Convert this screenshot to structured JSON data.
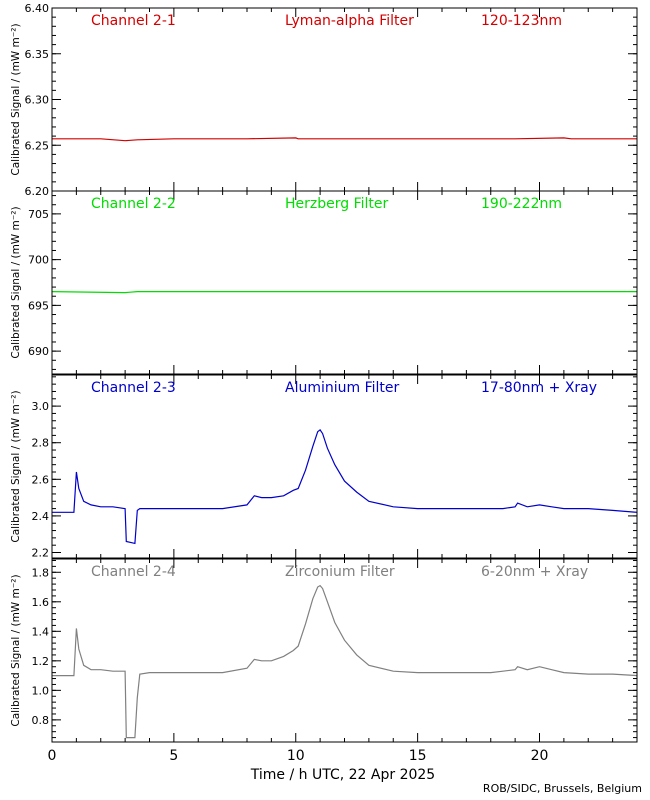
{
  "colors": {
    "channel_1": "#d40000",
    "channel_2": "#00dd00",
    "channel_3": "#0000cc",
    "channel_4": "#808080",
    "axes": "#000000"
  },
  "xlabel": "Time / h UTC, 22 Apr 2025",
  "credit": "ROB/SIDC, Brussels, Belgium",
  "chart_data": [
    {
      "type": "line",
      "channel": "Channel 2-1",
      "filter": "Lyman-alpha Filter",
      "band": "120-123nm",
      "ylabel": "Calibrated Signal / (mW m⁻²)",
      "xlim": [
        0,
        24
      ],
      "ylim": [
        6.2,
        6.4
      ],
      "yticks": [
        6.2,
        6.25,
        6.3,
        6.35,
        6.4
      ],
      "ytick_labels": [
        "6.20",
        "6.25",
        "6.30",
        "6.35",
        "6.40"
      ],
      "xticks": [
        0,
        5,
        10,
        15,
        20
      ],
      "xtick_labels": [
        "0",
        "5",
        "10",
        "15",
        "20"
      ],
      "x": [
        0,
        2,
        3,
        3.5,
        5,
        8,
        10,
        10.1,
        12,
        15,
        19,
        21,
        21.3,
        22,
        24
      ],
      "y": [
        6.257,
        6.257,
        6.255,
        6.256,
        6.257,
        6.257,
        6.258,
        6.257,
        6.257,
        6.257,
        6.257,
        6.258,
        6.257,
        6.257,
        6.257
      ]
    },
    {
      "type": "line",
      "channel": "Channel 2-2",
      "filter": "Herzberg Filter",
      "band": "190-222nm",
      "ylabel": "Calibrated Signal / (mW m⁻²)",
      "xlim": [
        0,
        24
      ],
      "ylim": [
        687.5,
        707.5
      ],
      "yticks": [
        690,
        695,
        700,
        705
      ],
      "ytick_labels": [
        "690",
        "695",
        "700",
        "705"
      ],
      "xticks": [
        0,
        5,
        10,
        15,
        20
      ],
      "xtick_labels": [
        "0",
        "5",
        "10",
        "15",
        "20"
      ],
      "x": [
        0,
        3,
        3.5,
        8,
        12,
        16,
        20,
        24
      ],
      "y": [
        696.5,
        696.4,
        696.5,
        696.5,
        696.5,
        696.5,
        696.5,
        696.5
      ]
    },
    {
      "type": "line",
      "channel": "Channel 2-3",
      "filter": "Aluminium Filter",
      "band": "17-80nm + Xray",
      "ylabel": "Calibrated Signal / (mW m⁻²)",
      "xlim": [
        0,
        24
      ],
      "ylim": [
        2.17,
        3.17
      ],
      "yticks": [
        2.2,
        2.4,
        2.6,
        2.8,
        3.0
      ],
      "ytick_labels": [
        "2.2",
        "2.4",
        "2.6",
        "2.8",
        "3.0"
      ],
      "xticks": [
        0,
        5,
        10,
        15,
        20
      ],
      "xtick_labels": [
        "0",
        "5",
        "10",
        "15",
        "20"
      ],
      "x": [
        0,
        0.9,
        1.0,
        1.1,
        1.3,
        1.6,
        2.0,
        2.5,
        3.0,
        3.05,
        3.4,
        3.5,
        3.6,
        4.0,
        5.0,
        6.0,
        7.0,
        8.0,
        8.3,
        8.6,
        9.0,
        9.5,
        9.9,
        10.1,
        10.4,
        10.7,
        10.9,
        11.0,
        11.1,
        11.3,
        11.6,
        12.0,
        12.5,
        13.0,
        14.0,
        15.0,
        16.0,
        17.0,
        18.0,
        18.5,
        19.0,
        19.1,
        19.5,
        20.0,
        20.5,
        21.0,
        22.0,
        23.0,
        24.0
      ],
      "y": [
        2.42,
        2.42,
        2.64,
        2.55,
        2.48,
        2.46,
        2.45,
        2.45,
        2.44,
        2.26,
        2.25,
        2.43,
        2.44,
        2.44,
        2.44,
        2.44,
        2.44,
        2.46,
        2.51,
        2.5,
        2.5,
        2.51,
        2.54,
        2.55,
        2.65,
        2.78,
        2.86,
        2.87,
        2.85,
        2.77,
        2.68,
        2.59,
        2.53,
        2.48,
        2.45,
        2.44,
        2.44,
        2.44,
        2.44,
        2.44,
        2.45,
        2.47,
        2.45,
        2.46,
        2.45,
        2.44,
        2.44,
        2.43,
        2.42
      ]
    },
    {
      "type": "line",
      "channel": "Channel 2-4",
      "filter": "Zirconium Filter",
      "band": "6-20nm + Xray",
      "ylabel": "Calibrated Signal / (mW m⁻²)",
      "xlim": [
        0,
        24
      ],
      "ylim": [
        0.65,
        1.89
      ],
      "yticks": [
        0.8,
        1.0,
        1.2,
        1.4,
        1.6,
        1.8
      ],
      "ytick_labels": [
        "0.8",
        "1.0",
        "1.2",
        "1.4",
        "1.6",
        "1.8"
      ],
      "xticks": [
        0,
        5,
        10,
        15,
        20
      ],
      "xtick_labels": [
        "0",
        "5",
        "10",
        "15",
        "20"
      ],
      "x": [
        0,
        0.9,
        1.0,
        1.1,
        1.3,
        1.6,
        2.0,
        2.5,
        3.0,
        3.05,
        3.4,
        3.5,
        3.6,
        4.0,
        5.0,
        6.0,
        7.0,
        8.0,
        8.3,
        8.6,
        9.0,
        9.5,
        9.9,
        10.1,
        10.4,
        10.7,
        10.9,
        11.0,
        11.1,
        11.3,
        11.6,
        12.0,
        12.5,
        13.0,
        14.0,
        15.0,
        16.0,
        17.0,
        18.0,
        18.5,
        19.0,
        19.1,
        19.5,
        20.0,
        20.5,
        21.0,
        22.0,
        23.0,
        24.0
      ],
      "y": [
        1.1,
        1.1,
        1.42,
        1.28,
        1.17,
        1.14,
        1.14,
        1.13,
        1.13,
        0.68,
        0.68,
        0.95,
        1.11,
        1.12,
        1.12,
        1.12,
        1.12,
        1.15,
        1.21,
        1.2,
        1.2,
        1.23,
        1.27,
        1.3,
        1.45,
        1.62,
        1.7,
        1.71,
        1.69,
        1.6,
        1.46,
        1.34,
        1.24,
        1.17,
        1.13,
        1.12,
        1.12,
        1.12,
        1.12,
        1.13,
        1.14,
        1.16,
        1.14,
        1.16,
        1.14,
        1.12,
        1.11,
        1.11,
        1.1
      ]
    }
  ]
}
